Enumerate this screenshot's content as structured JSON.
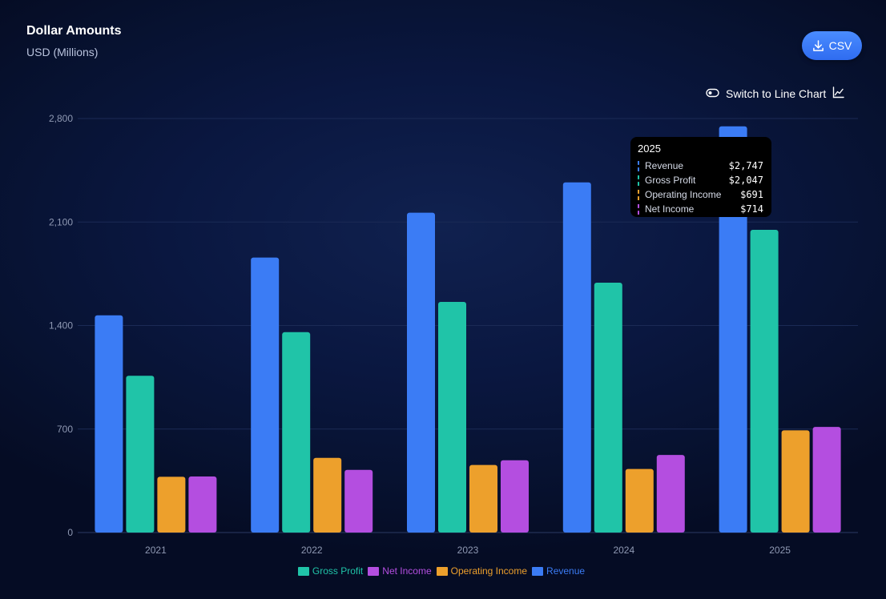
{
  "header": {
    "title": "Dollar Amounts",
    "subtitle": "USD (Millions)"
  },
  "toolbar": {
    "csv_label": "CSV",
    "switch_label": "Switch to Line Chart"
  },
  "colors": {
    "revenue": "#3b7cf5",
    "gross_profit": "#20c4a8",
    "operating_income": "#eda02c",
    "net_income": "#b44ee0",
    "accent": "#3b7cf5"
  },
  "tooltip": {
    "title": "2025",
    "rows": [
      {
        "name": "Revenue",
        "value": "$2,747",
        "color": "#3b7cf5"
      },
      {
        "name": "Gross Profit",
        "value": "$2,047",
        "color": "#20c4a8"
      },
      {
        "name": "Operating Income",
        "value": "$691",
        "color": "#eda02c"
      },
      {
        "name": "Net Income",
        "value": "$714",
        "color": "#b44ee0"
      }
    ]
  },
  "legend": [
    {
      "label": "Gross Profit",
      "color": "#20c4a8"
    },
    {
      "label": "Net Income",
      "color": "#b44ee0"
    },
    {
      "label": "Operating Income",
      "color": "#eda02c"
    },
    {
      "label": "Revenue",
      "color": "#3b7cf5"
    }
  ],
  "chart_data": {
    "type": "bar",
    "title": "Dollar Amounts",
    "subtitle": "USD (Millions)",
    "categories": [
      "2021",
      "2022",
      "2023",
      "2024",
      "2025"
    ],
    "series": [
      {
        "name": "Revenue",
        "color": "#3b7cf5",
        "values": [
          1469,
          1860,
          2163,
          2368,
          2747
        ]
      },
      {
        "name": "Gross Profit",
        "color": "#20c4a8",
        "values": [
          1060,
          1355,
          1560,
          1690,
          2047
        ]
      },
      {
        "name": "Operating Income",
        "color": "#eda02c",
        "values": [
          377,
          505,
          457,
          430,
          691
        ]
      },
      {
        "name": "Net Income",
        "color": "#b44ee0",
        "values": [
          379,
          424,
          489,
          525,
          714
        ]
      }
    ],
    "ylim": [
      0,
      2800
    ],
    "yticks": [
      0,
      700,
      1400,
      2100,
      2800
    ],
    "ytick_labels": [
      "0",
      "700",
      "1,400",
      "2,100",
      "2,800"
    ],
    "xlabel": "",
    "ylabel": "",
    "grid": true,
    "legend_position": "bottom"
  }
}
